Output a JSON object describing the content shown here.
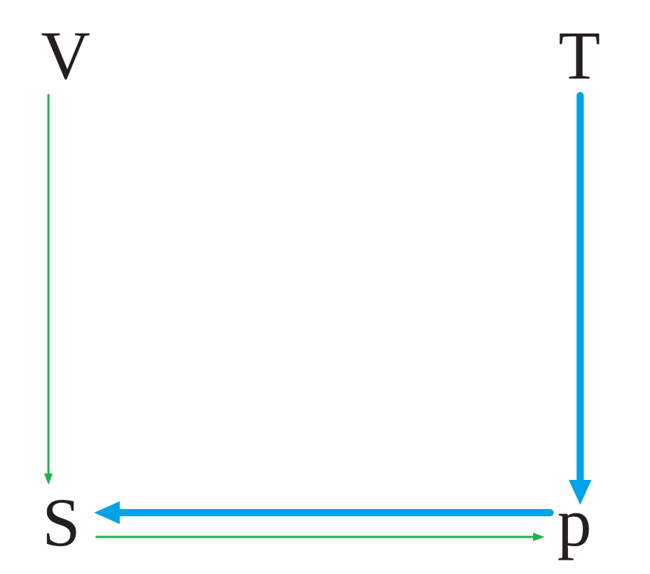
{
  "nodes": {
    "V": {
      "label": "V"
    },
    "T": {
      "label": "T"
    },
    "S": {
      "label": "S"
    },
    "p": {
      "label": "p"
    }
  },
  "edges": [
    {
      "from": "V",
      "to": "S",
      "style": "thin",
      "color": "#22b14c"
    },
    {
      "from": "T",
      "to": "p",
      "style": "thick",
      "color": "#00a2e8"
    },
    {
      "from": "p",
      "to": "S",
      "style": "thick",
      "color": "#00a2e8"
    },
    {
      "from": "S",
      "to": "p",
      "style": "thin",
      "color": "#22b14c"
    }
  ],
  "colors": {
    "text": "#231f20",
    "green": "#22b14c",
    "blue": "#00a2e8",
    "background": "#ffffff"
  }
}
